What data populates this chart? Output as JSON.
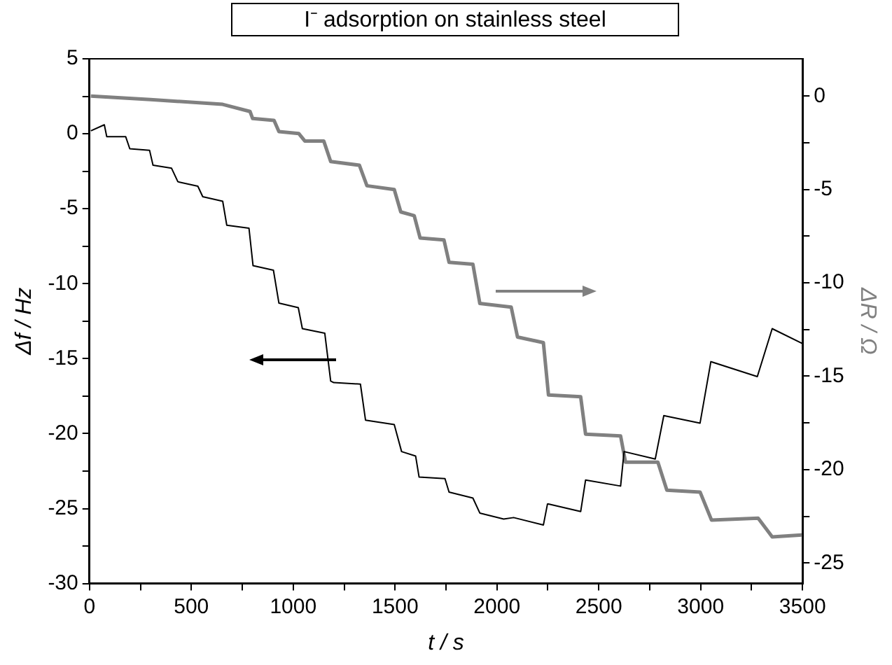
{
  "chart_data": {
    "type": "line",
    "title": "I⁻ adsorption on stainless steel",
    "xlabel": "t / s",
    "ylabel": "Δf / Hz",
    "y2label": "ΔR / Ω",
    "xlim": [
      0,
      3500
    ],
    "xticks": [
      0,
      {
        "value": 250,
        "label": null
      },
      500,
      {
        "value": 750,
        "label": null
      },
      1000,
      {
        "value": 1250,
        "label": null
      },
      1500,
      {
        "value": 1750,
        "label": null
      },
      2000,
      {
        "value": 2250,
        "label": null
      },
      2500,
      {
        "value": 2750,
        "label": null
      },
      3000,
      {
        "value": 3250,
        "label": null
      },
      3500
    ],
    "ylim": [
      -30,
      5
    ],
    "yticks": [
      -30,
      {
        "value": -27.5,
        "label": null
      },
      -25,
      {
        "value": -22.5,
        "label": null
      },
      -20,
      {
        "value": -17.5,
        "label": null
      },
      -15,
      {
        "value": -12.5,
        "label": null
      },
      -10,
      {
        "value": -7.5,
        "label": null
      },
      -5,
      {
        "value": -2.5,
        "label": null
      },
      0,
      {
        "value": 2.5,
        "label": null
      },
      5
    ],
    "y2lim": [
      -26.1,
      2
    ],
    "y2ticks": [
      -25,
      {
        "value": -22.5,
        "label": null
      },
      -20,
      {
        "value": -17.5,
        "label": null
      },
      -15,
      {
        "value": -12.5,
        "label": null
      },
      -10,
      {
        "value": -7.5,
        "label": null
      },
      -5,
      {
        "value": -2.5,
        "label": null
      },
      0
    ],
    "grid": false,
    "legend": false,
    "marker": "none",
    "line_style": "solid",
    "series": [
      {
        "color": "#000000",
        "x": [
          7,
          73,
          85,
          178,
          198,
          295,
          312,
          403,
          434,
          532,
          556,
          654,
          674,
          783,
          803,
          903,
          930,
          1025,
          1045,
          1155,
          1184,
          1199,
          1330,
          1355,
          1496,
          1532,
          1601,
          1618,
          1745,
          1765,
          1882,
          1916,
          2033,
          2082,
          2228,
          2248,
          2253,
          2411,
          2435,
          2607,
          2624,
          2777,
          2819,
          2997,
          3050,
          3278,
          3351,
          3500
        ],
        "values": [
          0.2,
          0.6,
          -0.2,
          -0.2,
          -1.0,
          -1.1,
          -2.1,
          -2.3,
          -3.2,
          -3.5,
          -4.2,
          -4.5,
          -6.1,
          -6.3,
          -8.8,
          -9.1,
          -11.3,
          -11.6,
          -13.0,
          -13.3,
          -16.5,
          -16.6,
          -16.7,
          -19.1,
          -19.4,
          -21.2,
          -21.5,
          -22.9,
          -23.0,
          -23.9,
          -24.3,
          -25.3,
          -25.7,
          -25.6,
          -26.1,
          -24.7,
          -24.7,
          -25.2,
          -23.1,
          -23.5,
          -21.2,
          -21.7,
          -18.8,
          -19.3,
          -15.2,
          -16.2,
          -13.0,
          -14.0
        ]
      },
      {
        "color": "#808080",
        "axis": "y2",
        "x": [
          7,
          300,
          654,
          788,
          801,
          906,
          930,
          1027,
          1057,
          1150,
          1184,
          1325,
          1362,
          1496,
          1528,
          1594,
          1623,
          1740,
          1765,
          1882,
          1916,
          2070,
          2101,
          2228,
          2253,
          2411,
          2435,
          2607,
          2631,
          2790,
          2834,
          2997,
          3053,
          3282,
          3351,
          3497
        ],
        "values": [
          0,
          -0.18,
          -0.44,
          -0.82,
          -1.2,
          -1.3,
          -1.9,
          -2.0,
          -2.4,
          -2.4,
          -3.5,
          -3.7,
          -4.8,
          -5.0,
          -6.2,
          -6.4,
          -7.6,
          -7.7,
          -8.9,
          -9.0,
          -11.1,
          -11.3,
          -12.9,
          -13.2,
          -16.0,
          -16.1,
          -18.1,
          -18.2,
          -19.6,
          -19.6,
          -21.1,
          -21.2,
          -22.7,
          -22.6,
          -23.6,
          -23.5
        ]
      }
    ]
  }
}
